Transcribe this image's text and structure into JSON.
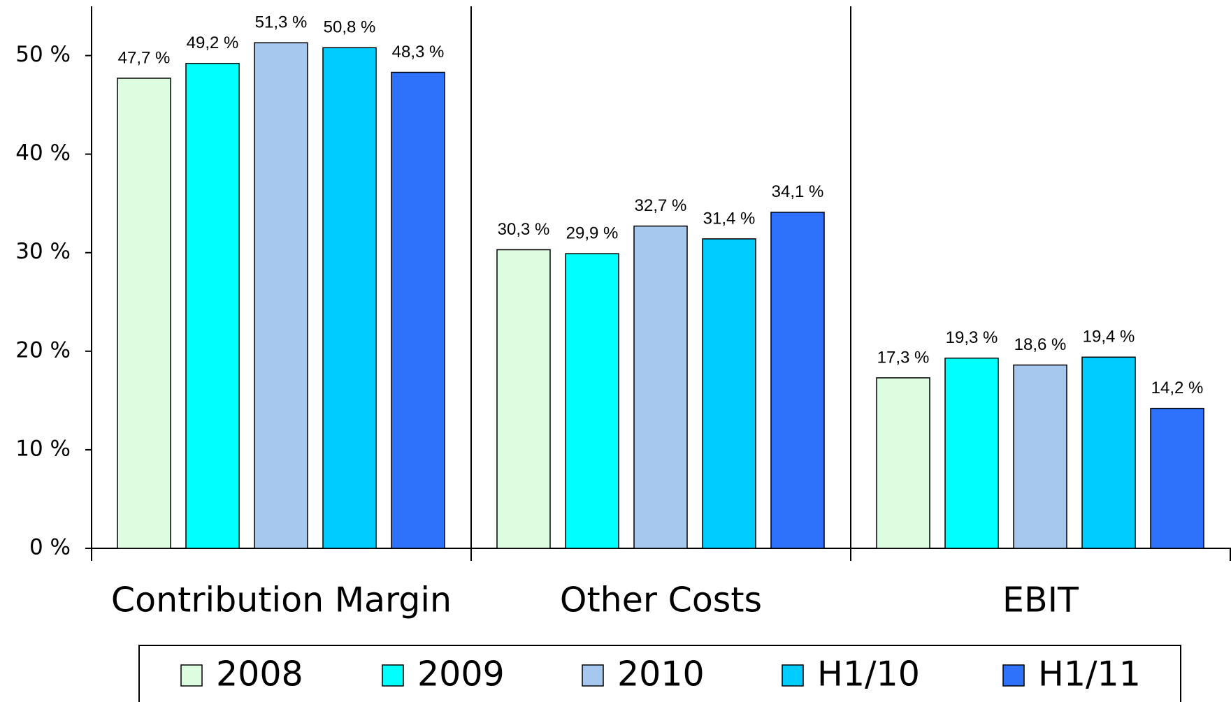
{
  "chart_data": {
    "type": "bar",
    "categories": [
      "Contribution Margin",
      "Other Costs",
      "EBIT"
    ],
    "series": [
      {
        "name": "2008",
        "color": "#ddfde0",
        "values": [
          47.7,
          30.3,
          17.3
        ],
        "value_labels": [
          "47,7 %",
          "30,3 %",
          "17,3 %"
        ]
      },
      {
        "name": "2009",
        "color": "#00ffff",
        "values": [
          49.2,
          29.9,
          19.3
        ],
        "value_labels": [
          "49,2 %",
          "29,9 %",
          "19,3 %"
        ]
      },
      {
        "name": "2010",
        "color": "#a6c8ef",
        "values": [
          51.3,
          32.7,
          18.6
        ],
        "value_labels": [
          "51,3 %",
          "32,7 %",
          "18,6 %"
        ]
      },
      {
        "name": "H1/10",
        "color": "#00ccff",
        "values": [
          50.8,
          31.4,
          19.4
        ],
        "value_labels": [
          "50,8 %",
          "31,4 %",
          "19,4 %"
        ]
      },
      {
        "name": "H1/11",
        "color": "#2e72fc",
        "values": [
          48.3,
          34.1,
          14.2
        ],
        "value_labels": [
          "48,3 %",
          "34,1 %",
          "14,2 %"
        ]
      }
    ],
    "ylim": [
      0,
      55
    ],
    "yticks": [
      {
        "value": 0,
        "label": "0 %"
      },
      {
        "value": 10,
        "label": "10 %"
      },
      {
        "value": 20,
        "label": "20 %"
      },
      {
        "value": 30,
        "label": "30 %"
      },
      {
        "value": 40,
        "label": "40 %"
      },
      {
        "value": 50,
        "label": "50 %"
      }
    ],
    "legend": "bottom"
  }
}
